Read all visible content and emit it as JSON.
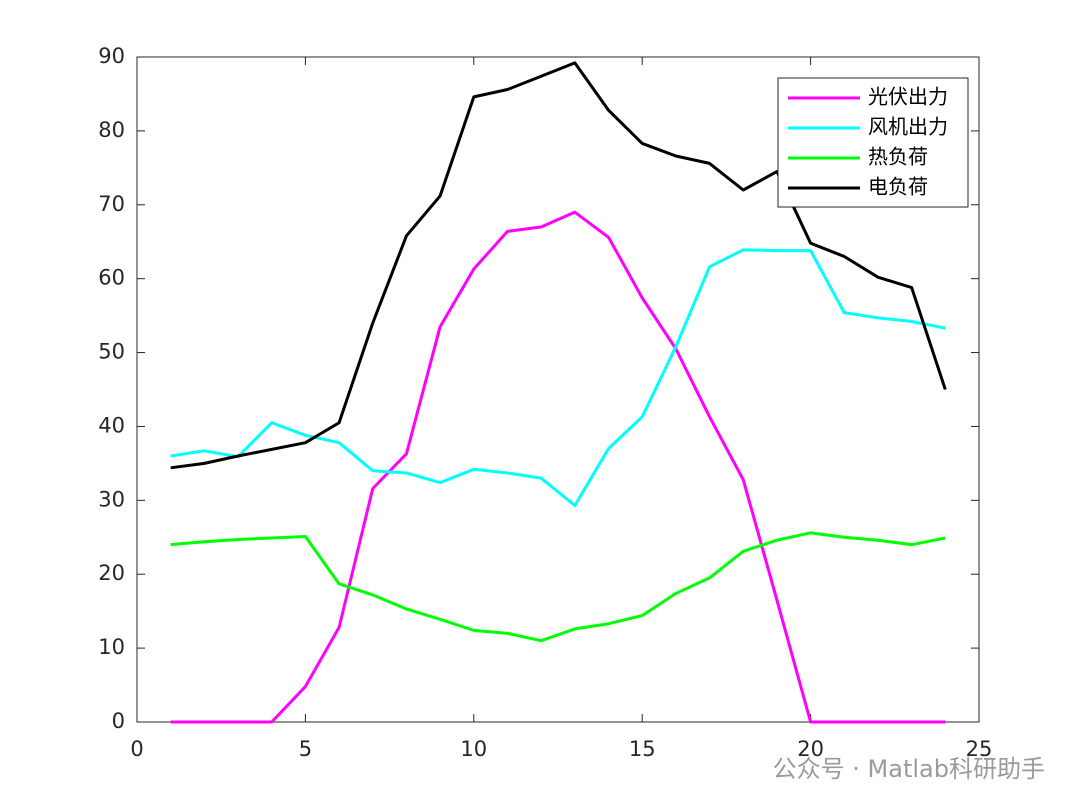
{
  "chart_data": {
    "type": "line",
    "x": [
      1,
      2,
      3,
      4,
      5,
      6,
      7,
      8,
      9,
      10,
      11,
      12,
      13,
      14,
      15,
      16,
      17,
      18,
      19,
      20,
      21,
      22,
      23,
      24
    ],
    "series": [
      {
        "name": "光伏出力",
        "color": "#ff00ff",
        "values": [
          0,
          0,
          0,
          0,
          4.8,
          12.8,
          31.6,
          36.3,
          53.5,
          61.3,
          66.4,
          67,
          69,
          65.6,
          57.4,
          50.5,
          41.3,
          32.8,
          16.5,
          0,
          0,
          0,
          0,
          0
        ]
      },
      {
        "name": "风机出力",
        "color": "#00ffff",
        "values": [
          36,
          36.7,
          35.9,
          40.5,
          38.8,
          37.8,
          34,
          33.7,
          32.4,
          34.2,
          33.7,
          33,
          29.3,
          37,
          41.3,
          50.8,
          61.6,
          63.9,
          63.8,
          63.8,
          55.4,
          54.7,
          54.2,
          53.3
        ]
      },
      {
        "name": "热负荷",
        "color": "#00ff00",
        "values": [
          24,
          24.4,
          24.7,
          24.9,
          25.1,
          18.7,
          17.2,
          15.3,
          13.9,
          12.4,
          12,
          11,
          12.6,
          13.3,
          14.4,
          17.4,
          19.5,
          23.1,
          24.6,
          25.6,
          25,
          24.6,
          24,
          24.9
        ]
      },
      {
        "name": "电负荷",
        "color": "#000000",
        "values": [
          34.4,
          35,
          36,
          36.9,
          37.8,
          40.5,
          54,
          65.8,
          71.2,
          84.6,
          85.6,
          87.4,
          89.2,
          82.8,
          78.3,
          76.6,
          75.6,
          72,
          74.5,
          64.8,
          63,
          60.2,
          58.8,
          45
        ]
      }
    ],
    "xlim": [
      0,
      25
    ],
    "xticks": [
      0,
      5,
      10,
      15,
      20,
      25
    ],
    "ylim": [
      0,
      90
    ],
    "yticks": [
      0,
      10,
      20,
      30,
      40,
      50,
      60,
      70,
      80,
      90
    ],
    "grid": false,
    "legend": "top-right",
    "watermark": "公众号 · Matlab科研助手"
  }
}
